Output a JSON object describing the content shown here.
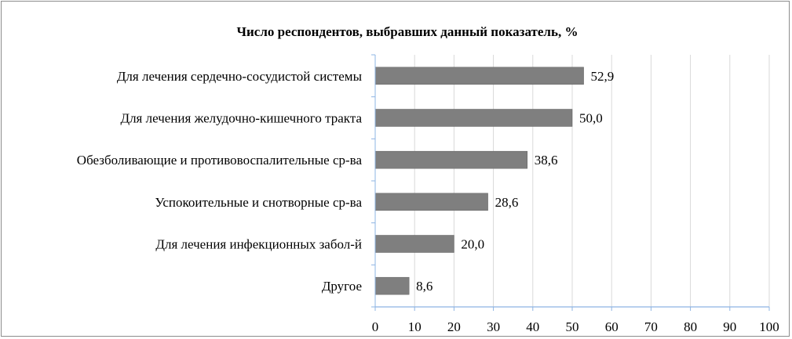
{
  "chart_data": {
    "type": "bar",
    "orientation": "horizontal",
    "title": "Число респондентов, выбравших данный показатель, %",
    "xlabel": "",
    "ylabel": "",
    "categories": [
      "Для лечения сердечно-сосудистой системы",
      "Для лечения желудочно-кишечного тракта",
      "Обезболивающие и противовоспалительные ср-ва",
      "Успокоительные и снотворные ср-ва",
      "Для лечения инфекционных забол-й",
      "Другое"
    ],
    "values": [
      52.9,
      50.0,
      38.6,
      28.6,
      20.0,
      8.6
    ],
    "value_labels": [
      "52,9",
      "50,0",
      "38,6",
      "28,6",
      "20,0",
      "8,6"
    ],
    "xlim": [
      0,
      100
    ],
    "xticks": [
      0,
      10,
      20,
      30,
      40,
      50,
      60,
      70,
      80,
      90,
      100
    ],
    "grid": true,
    "legend": "none",
    "bar_color": "#7f7f7f",
    "grid_color": "#d9d9d9",
    "axis_color": "#8eb4e3"
  }
}
